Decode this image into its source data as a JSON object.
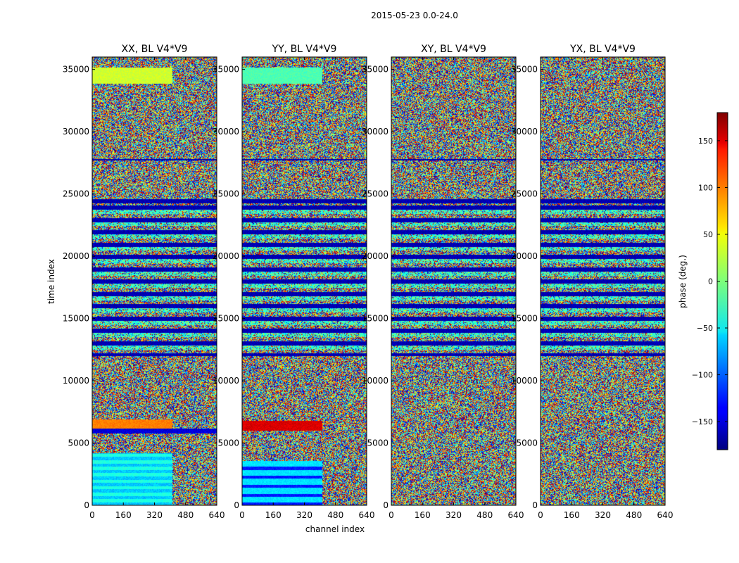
{
  "chart_data": {
    "type": "heatmap",
    "title": "2015-05-23 0.0-24.0",
    "xlabel": "channel index",
    "ylabel": "time index",
    "xlim": [
      0,
      640
    ],
    "ylim": [
      0,
      36000
    ],
    "xticks": [
      "0",
      "160",
      "320",
      "480",
      "640"
    ],
    "xtick_values": [
      0,
      160,
      320,
      480,
      640
    ],
    "yticks": [
      "0",
      "5000",
      "10000",
      "15000",
      "20000",
      "25000",
      "30000",
      "35000"
    ],
    "ytick_values": [
      0,
      5000,
      10000,
      15000,
      20000,
      25000,
      30000,
      35000
    ],
    "panels": [
      {
        "title": "XX, BL V4*V9"
      },
      {
        "title": "YY, BL V4*V9"
      },
      {
        "title": "XY, BL V4*V9"
      },
      {
        "title": "YX, BL V4*V9"
      }
    ],
    "colorbar": {
      "label": "phase (deg.)",
      "range": [
        -180,
        180
      ],
      "ticks": [
        "150",
        "100",
        "50",
        "0",
        "−50",
        "−100",
        "−150"
      ],
      "tick_values": [
        150,
        100,
        50,
        0,
        -50,
        -100,
        -150
      ],
      "colormap": "jet"
    }
  }
}
